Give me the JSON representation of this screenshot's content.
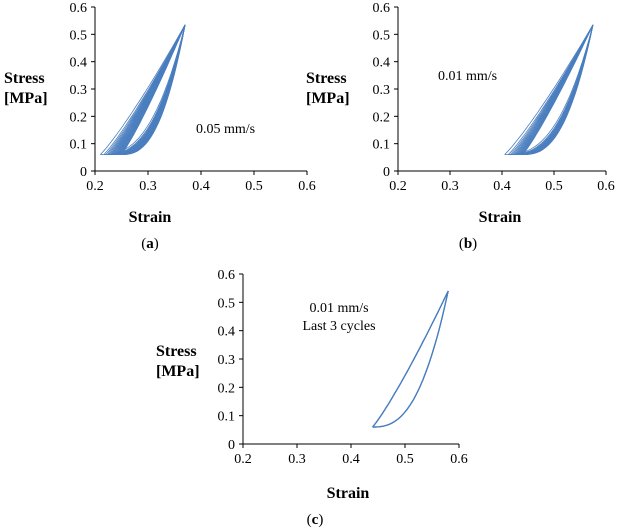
{
  "chart_data": [
    {
      "id": "a",
      "type": "line",
      "panel_label": "a",
      "xlabel": "Strain",
      "ylabel": "Stress [MPa]",
      "xlim": [
        0.2,
        0.6
      ],
      "ylim": [
        0,
        0.6
      ],
      "xticks": [
        "0.2",
        "0.3",
        "0.4",
        "0.5",
        "0.6"
      ],
      "yticks": [
        "0",
        "0.1",
        "0.2",
        "0.3",
        "0.4",
        "0.5",
        "0.6"
      ],
      "annotations": [
        "0.05 mm/s"
      ],
      "cycles": 20,
      "first_cycle_min_strain": 0.21,
      "last_cycle_min_strain": 0.25,
      "peak": [
        0.37,
        0.535
      ],
      "min_stress": 0.06
    },
    {
      "id": "b",
      "type": "line",
      "panel_label": "b",
      "xlabel": "Strain",
      "ylabel": "Stress [MPa]",
      "xlim": [
        0.2,
        0.6
      ],
      "ylim": [
        0,
        0.6
      ],
      "xticks": [
        "0.2",
        "0.3",
        "0.4",
        "0.5",
        "0.6"
      ],
      "yticks": [
        "0",
        "0.1",
        "0.2",
        "0.3",
        "0.4",
        "0.5",
        "0.6"
      ],
      "annotations": [
        "0.01 mm/s"
      ],
      "cycles": 15,
      "first_cycle_min_strain": 0.405,
      "last_cycle_min_strain": 0.44,
      "peak": [
        0.575,
        0.535
      ],
      "min_stress": 0.06
    },
    {
      "id": "c",
      "type": "line",
      "panel_label": "c",
      "xlabel": "Strain",
      "ylabel": "Stress [MPa]",
      "xlim": [
        0.2,
        0.6
      ],
      "ylim": [
        0,
        0.6
      ],
      "xticks": [
        "0.2",
        "0.3",
        "0.4",
        "0.5",
        "0.6"
      ],
      "yticks": [
        "0",
        "0.1",
        "0.2",
        "0.3",
        "0.4",
        "0.5",
        "0.6"
      ],
      "annotations": [
        "0.01 mm/s",
        "Last 3 cycles"
      ],
      "cycles": 3,
      "first_cycle_min_strain": 0.44,
      "last_cycle_min_strain": 0.44,
      "peak": [
        0.58,
        0.54
      ],
      "min_stress": 0.06
    }
  ]
}
